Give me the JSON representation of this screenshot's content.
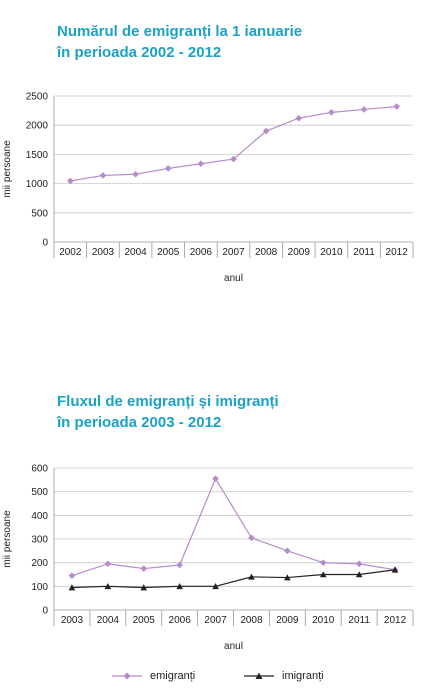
{
  "colors": {
    "title": "#1aa2c7",
    "emigranti": "#b58cc9",
    "imigranti": "#222222",
    "grid": "#c8c8c8"
  },
  "chart_data": [
    {
      "type": "line",
      "title": [
        "Numărul de emigranți la 1 ianuarie",
        "în perioada 2002 - 2012"
      ],
      "xlabel": "anul",
      "ylabel": "mii persoane",
      "ylim": [
        0,
        2500
      ],
      "yticks": [
        0,
        500,
        1000,
        1500,
        2000,
        2500
      ],
      "categories": [
        "2002",
        "2003",
        "2004",
        "2005",
        "2006",
        "2007",
        "2008",
        "2009",
        "2010",
        "2011",
        "2012"
      ],
      "grid": true,
      "series": [
        {
          "marker": "diamond",
          "color": "#b58cc9",
          "values": [
            1045,
            1140,
            1160,
            1260,
            1340,
            1420,
            1900,
            2120,
            2220,
            2270,
            2320
          ]
        }
      ]
    },
    {
      "type": "line",
      "title": [
        "Fluxul de emigranți și imigranți",
        "în perioada 2003 - 2012"
      ],
      "xlabel": "anul",
      "ylabel": "mii persoane",
      "ylim": [
        0,
        600
      ],
      "yticks": [
        0,
        100,
        200,
        300,
        400,
        500,
        600
      ],
      "categories": [
        "2003",
        "2004",
        "2005",
        "2006",
        "2007",
        "2008",
        "2009",
        "2010",
        "2011",
        "2012"
      ],
      "grid": true,
      "legend_position": "bottom",
      "series": [
        {
          "name": "emigranți",
          "marker": "diamond",
          "color": "#b58cc9",
          "values": [
            145,
            195,
            175,
            190,
            555,
            305,
            250,
            200,
            195,
            170
          ]
        },
        {
          "name": "imigranți",
          "marker": "triangle",
          "color": "#222222",
          "values": [
            95,
            100,
            95,
            100,
            100,
            140,
            137,
            150,
            150,
            170
          ]
        }
      ]
    }
  ]
}
